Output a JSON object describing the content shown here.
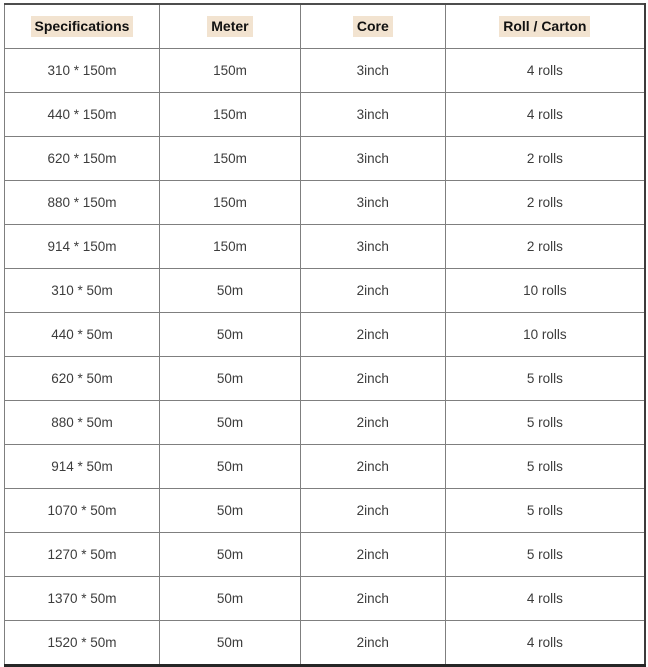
{
  "colors": {
    "header_highlight": "#f2e3d0",
    "grid_border": "#7f7f7f",
    "outer_bottom_border": "#262626",
    "header_text": "#111111",
    "cell_text": "#3c3c3c"
  },
  "table": {
    "columns": [
      {
        "label": "Specifications"
      },
      {
        "label": "Meter"
      },
      {
        "label": "Core"
      },
      {
        "label": "Roll / Carton"
      }
    ],
    "rows": [
      [
        "310 * 150m",
        "150m",
        "3inch",
        "4 rolls"
      ],
      [
        "440 * 150m",
        "150m",
        "3inch",
        "4 rolls"
      ],
      [
        "620 * 150m",
        "150m",
        "3inch",
        "2 rolls"
      ],
      [
        "880 * 150m",
        "150m",
        "3inch",
        "2 rolls"
      ],
      [
        "914 * 150m",
        "150m",
        "3inch",
        "2 rolls"
      ],
      [
        "310 * 50m",
        "50m",
        "2inch",
        "10 rolls"
      ],
      [
        "440 * 50m",
        "50m",
        "2inch",
        "10 rolls"
      ],
      [
        "620 * 50m",
        "50m",
        "2inch",
        "5 rolls"
      ],
      [
        "880 * 50m",
        "50m",
        "2inch",
        "5 rolls"
      ],
      [
        "914 * 50m",
        "50m",
        "2inch",
        "5 rolls"
      ],
      [
        "1070 * 50m",
        "50m",
        "2inch",
        "5 rolls"
      ],
      [
        "1270 * 50m",
        "50m",
        "2inch",
        "5 rolls"
      ],
      [
        "1370 * 50m",
        "50m",
        "2inch",
        "4 rolls"
      ],
      [
        "1520 * 50m",
        "50m",
        "2inch",
        "4 rolls"
      ]
    ]
  }
}
